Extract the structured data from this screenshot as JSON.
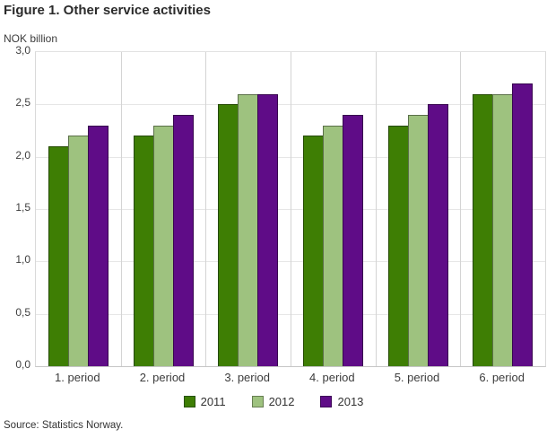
{
  "title": "Figure 1. Other service activities",
  "source": "Source: Statistics Norway.",
  "chart_data": {
    "type": "bar",
    "title": "Figure 1. Other service activities",
    "xlabel": "",
    "ylabel": "NOK billion",
    "categories": [
      "1. period",
      "2. period",
      "3. period",
      "4. period",
      "5. period",
      "6. period"
    ],
    "series": [
      {
        "name": "2011",
        "color": "#3e7e04",
        "values": [
          2.1,
          2.2,
          2.5,
          2.2,
          2.3,
          2.6
        ]
      },
      {
        "name": "2012",
        "color": "#9ec27f",
        "values": [
          2.2,
          2.3,
          2.6,
          2.3,
          2.4,
          2.6
        ]
      },
      {
        "name": "2013",
        "color": "#5f0c87",
        "values": [
          2.3,
          2.4,
          2.6,
          2.4,
          2.5,
          2.7
        ]
      }
    ],
    "ylim": [
      0,
      3
    ],
    "yticks": [
      {
        "value": 0.0,
        "label": "0,0"
      },
      {
        "value": 0.5,
        "label": "0,5"
      },
      {
        "value": 1.0,
        "label": "1,0"
      },
      {
        "value": 1.5,
        "label": "1,5"
      },
      {
        "value": 2.0,
        "label": "2,0"
      },
      {
        "value": 2.5,
        "label": "2,5"
      },
      {
        "value": 3.0,
        "label": "3,0"
      }
    ],
    "grid": true,
    "legend_position": "bottom",
    "legend_labels": [
      "2011",
      "2012",
      "2013"
    ]
  }
}
